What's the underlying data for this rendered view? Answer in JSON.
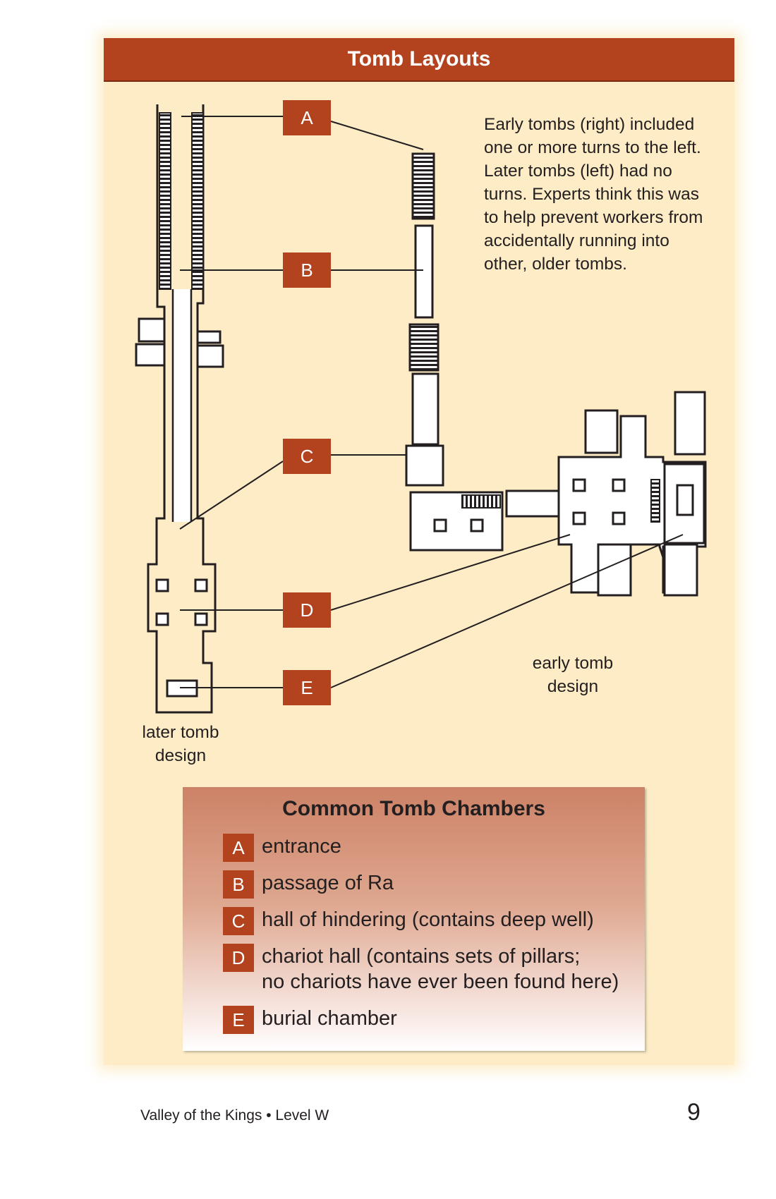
{
  "title": "Tomb Layouts",
  "note": "Early tombs (right) included one or more turns to the left. Later tombs (left) had no turns. Experts think this was to help prevent workers from accidentally running into other, older tombs.",
  "captions": {
    "later": [
      "later tomb",
      "design"
    ],
    "early": [
      "early tomb",
      "design"
    ]
  },
  "badges": [
    "A",
    "B",
    "C",
    "D",
    "E"
  ],
  "legend": {
    "title": "Common Tomb Chambers",
    "items": [
      {
        "key": "A",
        "lines": [
          "entrance"
        ]
      },
      {
        "key": "B",
        "lines": [
          "passage of Ra"
        ]
      },
      {
        "key": "C",
        "lines": [
          "hall of hindering (contains deep well)"
        ]
      },
      {
        "key": "D",
        "lines": [
          "chariot hall (contains sets of pillars;",
          "no chariots have ever been found here)"
        ]
      },
      {
        "key": "E",
        "lines": [
          "burial chamber"
        ]
      }
    ]
  },
  "footer": {
    "text": "Valley of the Kings • Level W",
    "page_number": "9"
  },
  "colors": {
    "accent": "#b3431f",
    "panel": "#fdecc6"
  }
}
